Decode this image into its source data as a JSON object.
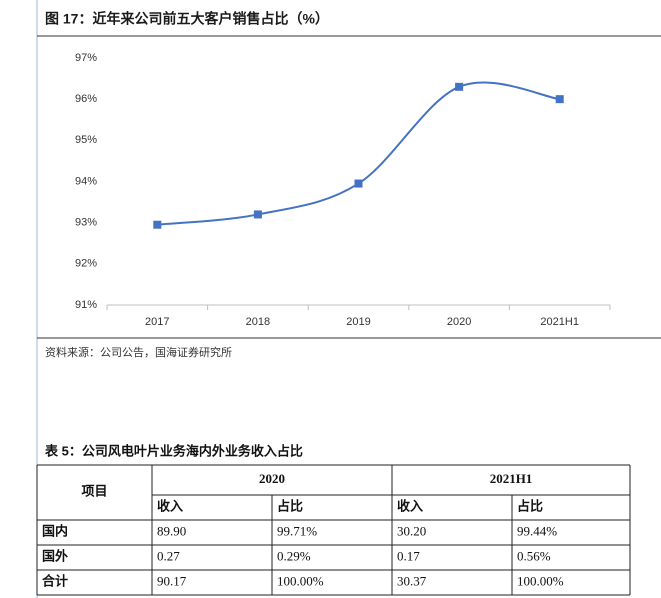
{
  "figure": {
    "title": "图 17：近年来公司前五大客户销售占比（%）",
    "source": "资料来源：公司公告，国海证券研究所"
  },
  "chart_data": {
    "type": "line",
    "categories": [
      "2017",
      "2018",
      "2019",
      "2020",
      "2021H1"
    ],
    "values": [
      92.95,
      93.2,
      93.95,
      96.3,
      96.0
    ],
    "color": "#4472c4",
    "ylim": [
      91,
      97
    ],
    "yticks": [
      {
        "value": 91,
        "label": "91%"
      },
      {
        "value": 92,
        "label": "92%"
      },
      {
        "value": 93,
        "label": "93%"
      },
      {
        "value": 94,
        "label": "94%"
      },
      {
        "value": 95,
        "label": "95%"
      },
      {
        "value": 96,
        "label": "96%"
      },
      {
        "value": 97,
        "label": "97%"
      }
    ],
    "smooth": true
  },
  "table": {
    "title": "表 5：公司风电叶片业务海内外业务收入占比",
    "header": [
      "项目",
      "2020",
      "2021H1"
    ],
    "subheader": [
      "收入",
      "占比",
      "收入",
      "占比"
    ],
    "rows": [
      [
        "国内",
        "89.90",
        "99.71%",
        "30.20",
        "99.44%"
      ],
      [
        "国外",
        "0.27",
        "0.29%",
        "0.17",
        "0.56%"
      ],
      [
        "合计",
        "90.17",
        "100.00%",
        "30.37",
        "100.00%"
      ]
    ]
  }
}
